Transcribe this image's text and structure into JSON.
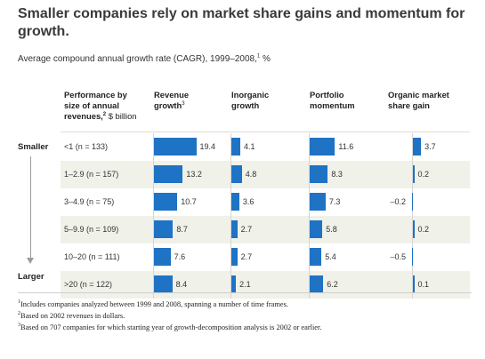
{
  "title": "Smaller companies rely on market share gains and momentum for growth.",
  "subtitle_main": "Average compound annual growth rate (CAGR), 1999–2008,",
  "subtitle_sup": "1",
  "subtitle_unit": " %",
  "headers": {
    "category_line1": "Performance by",
    "category_line2": "size of annual",
    "category_line3": "revenues,",
    "category_sup": "2",
    "category_unit": " $ billion",
    "col1_line1": "Revenue",
    "col1_line2": "growth",
    "col1_sup": "3",
    "col2_line1": "Inorganic",
    "col2_line2": "growth",
    "col3_line1": "Portfolio",
    "col3_line2": "momentum",
    "col4_line1": "Organic market",
    "col4_line2": "share gain"
  },
  "side_labels": {
    "top": "Smaller",
    "bottom": "Larger"
  },
  "chart_data": {
    "type": "bar",
    "categories": [
      "<1 (n = 133)",
      "1–2.9 (n = 157)",
      "3–4.9 (n = 75)",
      "5–9.9 (n = 109)",
      "10–20 (n = 111)",
      ">20 (n = 122)"
    ],
    "series": [
      {
        "name": "Revenue growth",
        "values": [
          19.4,
          13.2,
          10.7,
          8.7,
          7.6,
          8.4
        ]
      },
      {
        "name": "Inorganic growth",
        "values": [
          4.1,
          4.8,
          3.6,
          2.7,
          2.7,
          2.1
        ]
      },
      {
        "name": "Portfolio momentum",
        "values": [
          11.6,
          8.3,
          7.3,
          5.8,
          5.4,
          6.2
        ]
      },
      {
        "name": "Organic market share gain",
        "values": [
          3.7,
          0.2,
          -0.2,
          0.2,
          -0.5,
          0.1
        ]
      }
    ],
    "value_labels": [
      [
        "19.4",
        "13.2",
        "10.7",
        "8.7",
        "7.6",
        "8.4"
      ],
      [
        "4.1",
        "4.8",
        "3.6",
        "2.7",
        "2.7",
        "2.1"
      ],
      [
        "11.6",
        "8.3",
        "7.3",
        "5.8",
        "5.4",
        "6.2"
      ],
      [
        "3.7",
        "0.2",
        "–0.2",
        "0.2",
        "–0.5",
        "0.1"
      ]
    ],
    "bar_color": "#1f73c4",
    "stripe_color": "#f0f1e8"
  },
  "footnotes": [
    {
      "sup": "1",
      "text": "Includes companies analyzed between 1999 and 2008, spanning a number of time frames."
    },
    {
      "sup": "2",
      "text": "Based on 2002 revenues in dollars."
    },
    {
      "sup": "3",
      "text": "Based on 707 companies for which starting year of growth-decomposition analysis is 2002 or earlier."
    }
  ]
}
